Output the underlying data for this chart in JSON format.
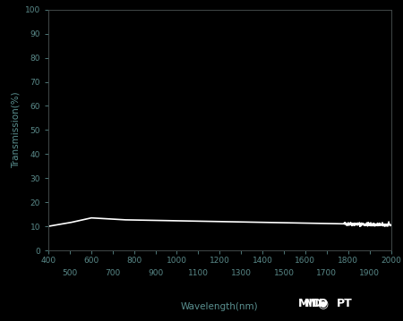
{
  "background_color": "#000000",
  "axes_bg_color": "#000000",
  "tick_label_color": "#5a8a8a",
  "axis_label_color": "#5a9090",
  "line_color": "#ffffff",
  "spine_color": "#404848",
  "xlabel": "Wavelength(nm)",
  "ylabel": "Transmission(%)",
  "xlim": [
    400,
    2000
  ],
  "ylim": [
    0,
    100
  ],
  "xticks_major": [
    400,
    600,
    800,
    1000,
    1200,
    1400,
    1600,
    1800,
    2000
  ],
  "xticks_minor": [
    500,
    700,
    900,
    1100,
    1300,
    1500,
    1700,
    1900
  ],
  "yticks": [
    0,
    10,
    20,
    30,
    40,
    50,
    60,
    70,
    80,
    90,
    100
  ],
  "midopt_color": "#ffffff",
  "line_width": 1.2
}
